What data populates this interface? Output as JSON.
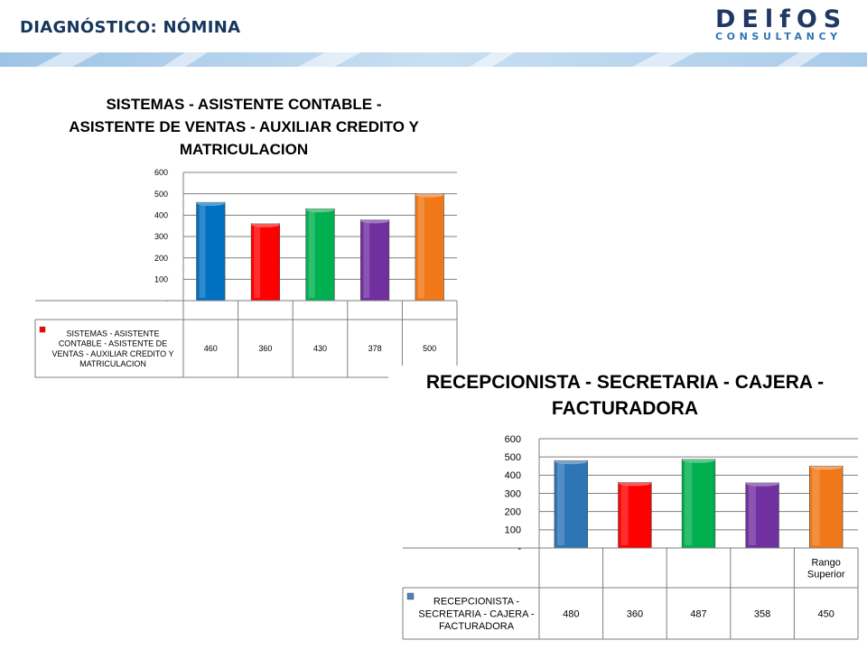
{
  "header": {
    "title": "DIAGNÓSTICO: NÓMINA",
    "logo_main": "DElfOS",
    "logo_sub": "CONSULTANCY"
  },
  "chart_data": [
    {
      "type": "bar",
      "title_lines": [
        "SISTEMAS - ASISTENTE CONTABLE -",
        "ASISTENTE DE VENTAS - AUXILIAR CREDITO Y",
        "MATRICULACION"
      ],
      "categories": [
        "",
        "",
        "",
        "",
        ""
      ],
      "series": [
        {
          "name_lines": [
            "SISTEMAS - ASISTENTE",
            "CONTABLE - ASISTENTE DE",
            "VENTAS - AUXILIAR CREDITO Y",
            "MATRICULACION"
          ],
          "values": [
            460,
            360,
            430,
            378,
            500
          ],
          "value_labels": [
            "460",
            "360",
            "430",
            "378",
            "500"
          ]
        }
      ],
      "bar_colors": [
        "#0070c0",
        "#ff0000",
        "#00b050",
        "#7030a0",
        "#f07818"
      ],
      "legend_marker_color": "#ff0000",
      "ylim": [
        0,
        600
      ],
      "yticks": [
        "-",
        "100",
        "200",
        "300",
        "400",
        "500",
        "600"
      ],
      "grid": true,
      "legend": "data-table"
    },
    {
      "type": "bar",
      "title_lines": [
        "RECEPCIONISTA - SECRETARIA - CAJERA -",
        "FACTURADORA"
      ],
      "categories": [
        "",
        "",
        "",
        "",
        "Rango Superior"
      ],
      "series": [
        {
          "name_lines": [
            "RECEPCIONISTA -",
            "SECRETARIA - CAJERA -",
            "FACTURADORA"
          ],
          "values": [
            480,
            360,
            487,
            358,
            450
          ],
          "value_labels": [
            "480",
            "360",
            "487",
            "358",
            "450"
          ]
        }
      ],
      "bar_colors": [
        "#2e75b6",
        "#ff0000",
        "#00b050",
        "#7030a0",
        "#f07818"
      ],
      "legend_marker_color": "#4f81bd",
      "ylim": [
        0,
        600
      ],
      "yticks": [
        "-",
        "100",
        "200",
        "300",
        "400",
        "500",
        "600"
      ],
      "grid": true,
      "legend": "data-table"
    }
  ]
}
